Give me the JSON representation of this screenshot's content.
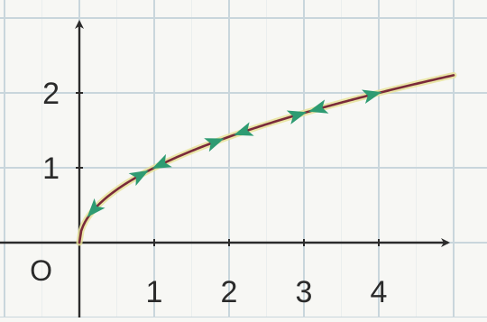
{
  "chart_data": {
    "type": "line",
    "title": "",
    "xlabel": "",
    "ylabel": "",
    "origin_label": "O",
    "xlim": [
      -1,
      5
    ],
    "ylim": [
      -1,
      3
    ],
    "x_ticks": [
      "1",
      "2",
      "3",
      "4"
    ],
    "y_ticks": [
      "1",
      "2"
    ],
    "grid": true,
    "series": [
      {
        "function": "sqrt(x)",
        "x": [
          0,
          0.25,
          0.5,
          1,
          1.5,
          2,
          2.5,
          3,
          3.5,
          4,
          4.5,
          5
        ],
        "y": [
          0,
          0.5,
          0.71,
          1,
          1.22,
          1.41,
          1.58,
          1.73,
          1.87,
          2,
          2.12,
          2.24
        ]
      }
    ],
    "arrow_markers": [
      {
        "x": 0.2,
        "direction": "backward"
      },
      {
        "x": 0.8,
        "direction": "forward"
      },
      {
        "x": 1.1,
        "direction": "backward"
      },
      {
        "x": 1.8,
        "direction": "forward"
      },
      {
        "x": 2.2,
        "direction": "backward"
      },
      {
        "x": 2.9,
        "direction": "forward"
      },
      {
        "x": 3.2,
        "direction": "backward"
      },
      {
        "x": 3.9,
        "direction": "forward"
      }
    ],
    "colors": {
      "grid": "#c9d6dc",
      "axes": "#2b2b2b",
      "curve": "#7a2a3a",
      "curve_band": "#e8e39a",
      "markers": "#2e9b72"
    }
  }
}
